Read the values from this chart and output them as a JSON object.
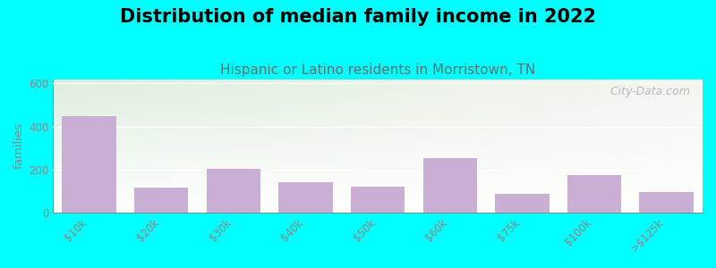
{
  "title": "Distribution of median family income in 2022",
  "subtitle": "Hispanic or Latino residents in Morristown, TN",
  "categories": [
    "$10k",
    "$20k",
    "$30k",
    "$40k",
    "$50k",
    "$60k",
    "$75k",
    "$100k",
    ">$125k"
  ],
  "values": [
    450,
    115,
    205,
    140,
    120,
    255,
    85,
    175,
    95
  ],
  "bar_color": "#c9afd4",
  "background_color": "#00ffff",
  "plot_bg_topleft": "#ddeedd",
  "plot_bg_topright": "#f5f5f0",
  "plot_bg_bottom": "#ffffff",
  "ylabel": "families",
  "ylim": [
    0,
    620
  ],
  "yticks": [
    0,
    200,
    400,
    600
  ],
  "title_fontsize": 15,
  "subtitle_fontsize": 11,
  "subtitle_color": "#557777",
  "axis_color": "#888888",
  "watermark": "  City-Data.com"
}
